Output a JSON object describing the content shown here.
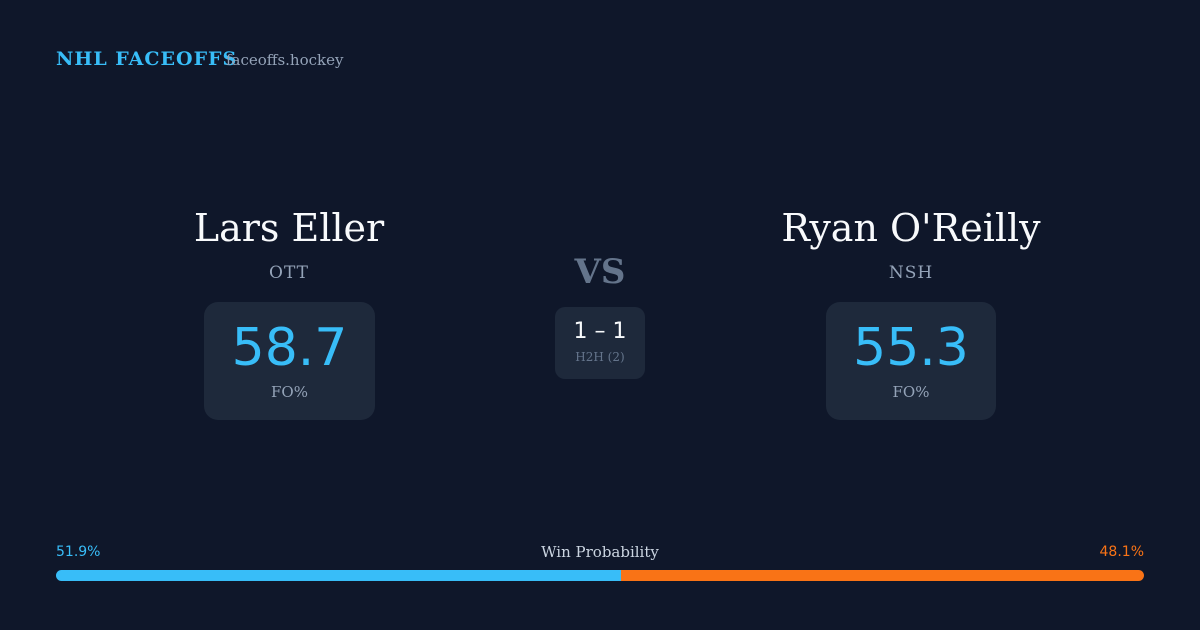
{
  "header": {
    "brand": "NHL FACEOFFS",
    "site": "faceoffs.hockey"
  },
  "players": [
    {
      "name": "Lars Eller",
      "team": "OTT",
      "fo": 58.7,
      "fo_label": "FO%"
    },
    {
      "name": "Ryan O'Reilly",
      "team": "NSH",
      "fo": 55.3,
      "fo_label": "FO%"
    }
  ],
  "vs": "VS",
  "h2h": {
    "score": "1 – 1",
    "label": "H2H (2)"
  },
  "win_probability": {
    "label": "Win Probability",
    "values": [
      51.9,
      48.1
    ],
    "value_labels": [
      "51.9%",
      "48.1%"
    ],
    "colors": [
      "#38bdf8",
      "#f97316"
    ]
  }
}
